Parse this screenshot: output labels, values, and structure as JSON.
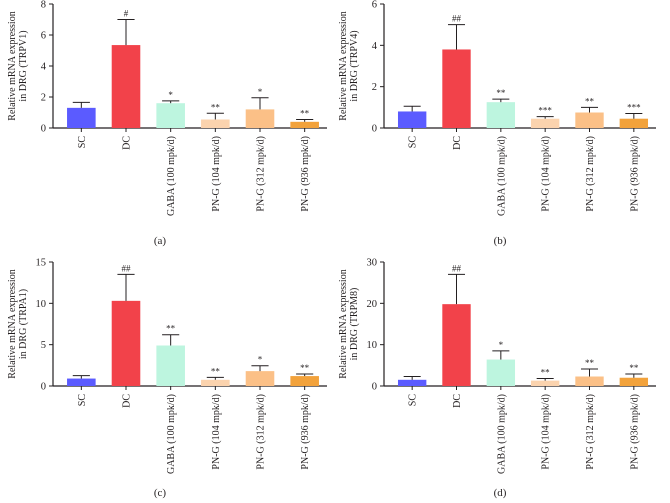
{
  "colors": {
    "SC": "#5b5bff",
    "DC": "#f2424a",
    "GABA": "#bdf5df",
    "PN104": "#fbd3ae",
    "PN312": "#fbc087",
    "PN936": "#f2a23b",
    "axis": "#231f20"
  },
  "chart_data": [
    {
      "type": "bar",
      "panel_label": "(a)",
      "ylabel": [
        "Relative mRNA expression",
        "in DRG (TRPV1)"
      ],
      "ylim": [
        0,
        8
      ],
      "yticks": [
        0,
        2,
        4,
        6,
        8
      ],
      "categories": [
        "SC",
        "DC",
        "GABA (100 mpk/d)",
        "PN-G (104 mpk/d)",
        "PN-G (312 mpk/d)",
        "PN-G (936 mpk/d)"
      ],
      "values": [
        1.3,
        5.35,
        1.6,
        0.55,
        1.2,
        0.4
      ],
      "errors": [
        0.35,
        1.65,
        0.15,
        0.4,
        0.75,
        0.15
      ],
      "annotations": [
        "",
        "#",
        "*",
        "**",
        "*",
        "**"
      ]
    },
    {
      "type": "bar",
      "panel_label": "(b)",
      "ylabel": [
        "Relative mRNA expression",
        "in DRG (TRPV4)"
      ],
      "ylim": [
        0,
        6
      ],
      "yticks": [
        0,
        2,
        4,
        6
      ],
      "categories": [
        "SC",
        "DC",
        "GABA (100 mpk/d)",
        "PN-G (104 mpk/d)",
        "PN-G (312 mpk/d)",
        "PN-G (936 mpk/d)"
      ],
      "values": [
        0.8,
        3.8,
        1.25,
        0.45,
        0.75,
        0.45
      ],
      "errors": [
        0.25,
        1.2,
        0.15,
        0.1,
        0.25,
        0.25
      ],
      "annotations": [
        "",
        "##",
        "**",
        "***",
        "**",
        "***"
      ]
    },
    {
      "type": "bar",
      "panel_label": "(c)",
      "ylabel": [
        "Relative mRNA expression",
        "in DRG (TRPA1)"
      ],
      "ylim": [
        0,
        15
      ],
      "yticks": [
        0,
        5,
        10,
        15
      ],
      "categories": [
        "SC",
        "DC",
        "GABA (100 mpk/d)",
        "PN-G (104 mpk/d)",
        "PN-G (312 mpk/d)",
        "PN-G (936 mpk/d)"
      ],
      "values": [
        0.9,
        10.3,
        4.9,
        0.75,
        1.8,
        1.2
      ],
      "errors": [
        0.35,
        3.2,
        1.3,
        0.3,
        0.65,
        0.25
      ],
      "annotations": [
        "",
        "##",
        "**",
        "**",
        "*",
        "**"
      ]
    },
    {
      "type": "bar",
      "panel_label": "(d)",
      "ylabel": [
        "Relative mRNA expression",
        "in DRG (TRPM8)"
      ],
      "ylim": [
        0,
        30
      ],
      "yticks": [
        0,
        10,
        20,
        30
      ],
      "categories": [
        "SC",
        "DC",
        "GABA (100 mpk/d)",
        "PN-G (104 mpk/d)",
        "PN-G (312 mpk/d)",
        "PN-G (936 mpk/d)"
      ],
      "values": [
        1.5,
        19.8,
        6.4,
        1.3,
        2.3,
        2.0
      ],
      "errors": [
        0.8,
        7.2,
        2.1,
        0.5,
        1.8,
        0.9
      ],
      "annotations": [
        "",
        "##",
        "*",
        "**",
        "**",
        "**"
      ]
    }
  ]
}
